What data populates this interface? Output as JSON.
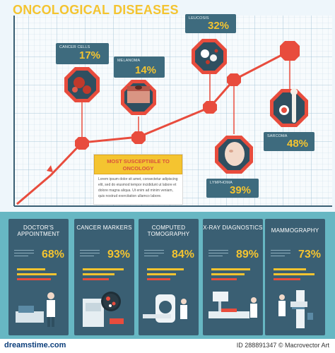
{
  "title": "ONCOLOGICAL DISEASES",
  "chart": {
    "callouts": [
      {
        "label": "CANCER CELLS",
        "percent": "17%"
      },
      {
        "label": "MELANOMA",
        "percent": "14%"
      },
      {
        "label": "LEUCOSIS",
        "percent": "32%"
      },
      {
        "label": "SARCOMA",
        "percent": "48%"
      },
      {
        "label": "LYMPHOMA",
        "percent": "39%"
      }
    ]
  },
  "susceptible": {
    "heading": "MOST SUSCEPTIBLE TO ONCOLOGY",
    "body": "Lorem ipsum dolor sit amet, consectetur adipiscing elit, sed do eiusmod tempor incididunt ut labore et dolore magna aliqua. Ut enim ad minim veniam, quis nostrud exercitation ullamco labore."
  },
  "cards": [
    {
      "title": "DOCTOR'S APPOINTMENT",
      "percent": "68%",
      "bars": [
        0.62,
        0.88,
        0.75
      ]
    },
    {
      "title": "CANCER MARKERS",
      "percent": "93%",
      "bars": [
        0.9,
        0.7,
        0.58
      ]
    },
    {
      "title": "COMPUTED TOMOGRAPHY",
      "percent": "84%",
      "bars": [
        0.82,
        0.64,
        0.52
      ]
    },
    {
      "title": "X-RAY DIAGNOSTICS",
      "percent": "89%",
      "bars": [
        0.86,
        0.74,
        0.56
      ]
    },
    {
      "title": "MAMMOGRAPHY",
      "percent": "73%",
      "bars": [
        0.72,
        0.9,
        0.6
      ]
    }
  ],
  "footer": {
    "site": "dreamstime.com",
    "id_text": "ID 288891347 © Macrovector Art"
  },
  "colors": {
    "accent_yellow": "#f4c430",
    "accent_red": "#e84c3d",
    "card_bg": "#3a5f73",
    "panel_teal": "#67b7c3"
  }
}
